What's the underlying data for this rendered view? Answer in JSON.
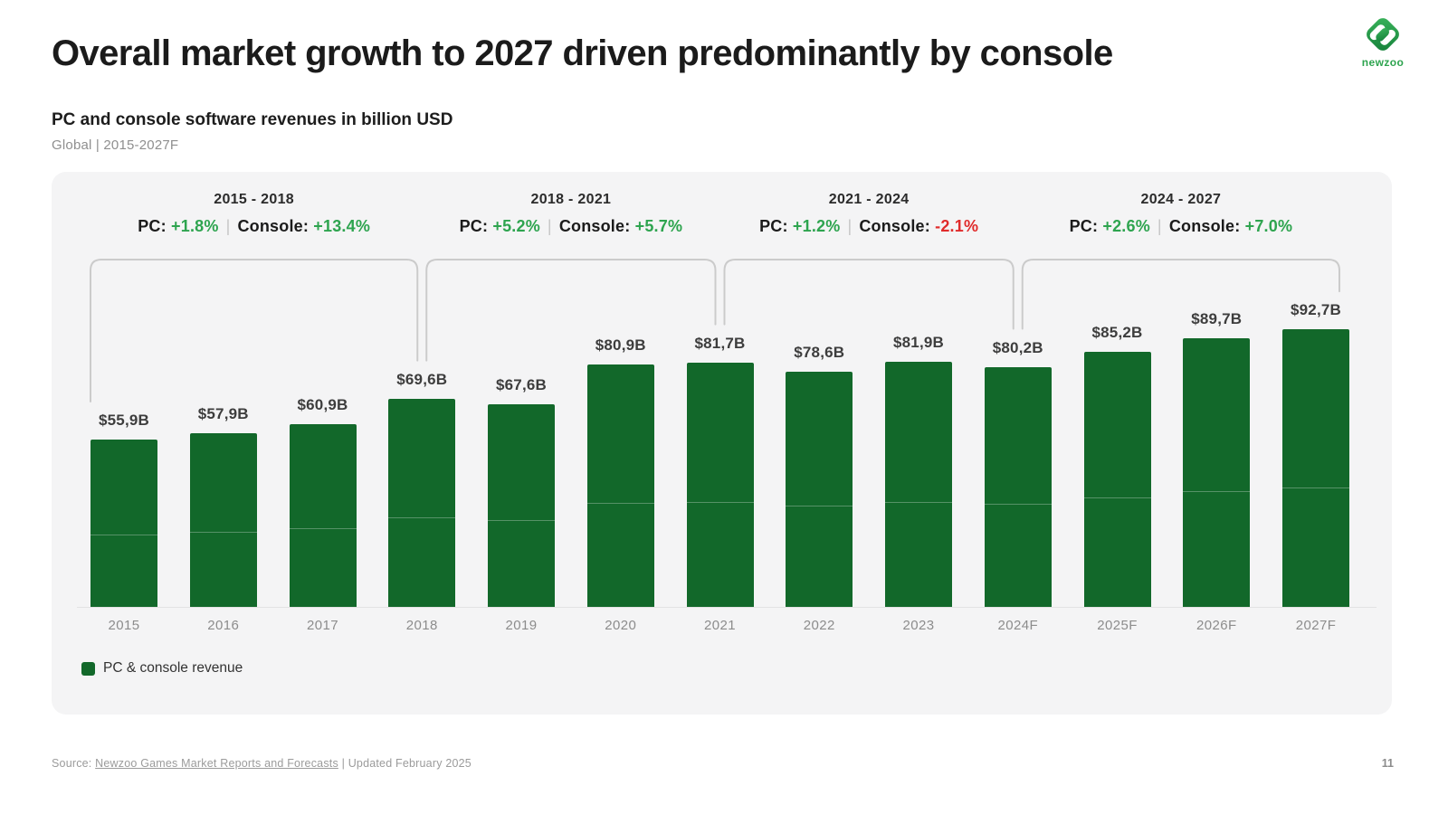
{
  "header": {
    "title": "Overall market growth to 2027 driven predominantly by console",
    "subtitle": "PC and console software revenues in billion USD",
    "scope": "Global | 2015-2027F",
    "logo_text": "newzoo"
  },
  "period_header_labels": {
    "pc_label": "PC:",
    "console_label": "Console:",
    "separator": "|"
  },
  "periods": [
    {
      "label": "2015 - 2018",
      "pc": "+1.8%",
      "console": "+13.4%",
      "start": 0,
      "end": 3
    },
    {
      "label": "2018 - 2021",
      "pc": "+5.2%",
      "console": "+5.7%",
      "start": 3,
      "end": 6
    },
    {
      "label": "2021 - 2024",
      "pc": "+1.2%",
      "console": "-2.1%",
      "start": 6,
      "end": 9
    },
    {
      "label": "2024 - 2027",
      "pc": "+2.6%",
      "console": "+7.0%",
      "start": 9,
      "end": 12
    }
  ],
  "chart_data": {
    "type": "bar",
    "title": "PC and console software revenues in billion USD",
    "subtitle": "Global | 2015-2027F",
    "unit": "billion USD",
    "categories": [
      "2015",
      "2016",
      "2017",
      "2018",
      "2019",
      "2020",
      "2021",
      "2022",
      "2023",
      "2024F",
      "2025F",
      "2026F",
      "2027F"
    ],
    "values": [
      55.9,
      57.9,
      60.9,
      69.6,
      67.6,
      80.9,
      81.7,
      78.6,
      81.9,
      80.2,
      85.2,
      89.7,
      92.7
    ],
    "value_labels": [
      "$55,9B",
      "$57,9B",
      "$60,9B",
      "$69,6B",
      "$67,6B",
      "$80,9B",
      "$81,7B",
      "$78,6B",
      "$81,9B",
      "$80,2B",
      "$85,2B",
      "$89,7B",
      "$92,7B"
    ],
    "ylim": [
      0,
      100
    ],
    "grid": false,
    "legend_position": "bottom-left",
    "legend": [
      {
        "label": "PC & console revenue",
        "color": "#12682a"
      }
    ],
    "bar_color": "#12682a"
  },
  "legend": {
    "label": "PC & console revenue"
  },
  "footer": {
    "source_prefix": "Source:",
    "source_link": "Newzoo Games Market Reports and Forecasts",
    "source_suffix": "| Updated February 2025",
    "page": "11"
  },
  "colors": {
    "bar": "#12682a",
    "positive": "#2ea44f",
    "negative": "#e02b2b",
    "panel_background": "#f4f4f5",
    "bracket": "#cbcbcb",
    "title_text": "#1b1b1b",
    "muted_text": "#8f8f8f"
  }
}
